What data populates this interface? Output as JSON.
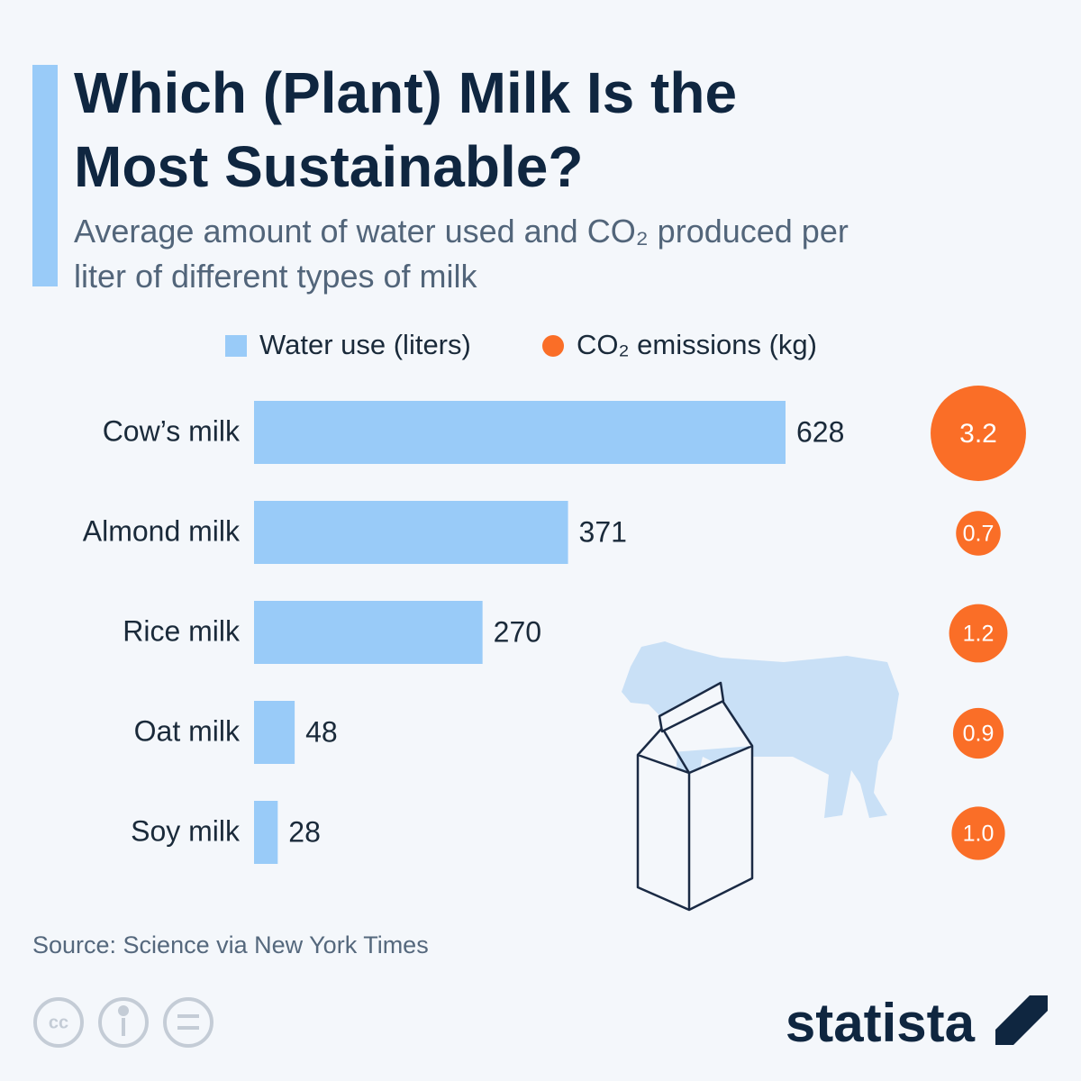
{
  "chart_data": {
    "type": "bar",
    "orientation": "horizontal",
    "title": "Which (Plant) Milk Is the Most Sustainable?",
    "subtitle": "Average amount of water used and CO₂ produced per liter of different types of milk",
    "categories": [
      "Cow’s milk",
      "Almond milk",
      "Rice milk",
      "Oat milk",
      "Soy milk"
    ],
    "series": [
      {
        "name": "Water use (liters)",
        "color": "#99cbf8",
        "mark": "bar",
        "values": [
          628,
          371,
          270,
          48,
          28
        ]
      },
      {
        "name": "CO₂ emissions (kg)",
        "color": "#fa6e27",
        "mark": "bubble",
        "values": [
          3.2,
          0.7,
          1.2,
          0.9,
          1.0
        ],
        "value_labels": [
          "3.2",
          "0.7",
          "1.2",
          "0.9",
          "1.0"
        ]
      }
    ],
    "source": "Source: Science via New York Times",
    "brand": "statista"
  }
}
